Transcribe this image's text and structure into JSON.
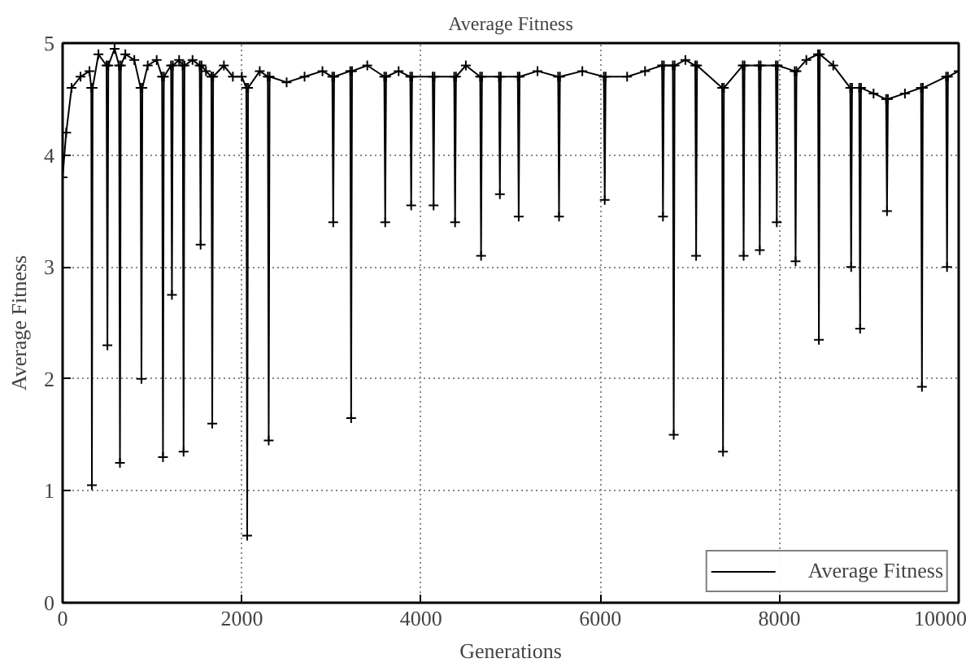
{
  "chart_data": {
    "type": "line",
    "title": "Average Fitness",
    "xlabel": "Generations",
    "ylabel": "Average Fitness",
    "xlim": [
      0,
      10000
    ],
    "ylim": [
      0,
      5
    ],
    "xticks": [
      0,
      2000,
      4000,
      6000,
      8000,
      10000
    ],
    "yticks": [
      0,
      1,
      2,
      3,
      4,
      5
    ],
    "grid": true,
    "legend": "bottom right",
    "marker": "cross",
    "line_style": "solid",
    "series": [
      {
        "name": "Average Fitness",
        "color": "#000000",
        "x": [
          0,
          40,
          100,
          200,
          300,
          320,
          327,
          335,
          400,
          490,
          500,
          510,
          580,
          630,
          640,
          650,
          700,
          800,
          870,
          880,
          890,
          950,
          1050,
          1110,
          1120,
          1130,
          1210,
          1220,
          1230,
          1300,
          1340,
          1350,
          1360,
          1450,
          1530,
          1540,
          1550,
          1600,
          1660,
          1670,
          1680,
          1800,
          1900,
          2000,
          2050,
          2060,
          2070,
          2200,
          2290,
          2300,
          2310,
          2500,
          2700,
          2900,
          3010,
          3020,
          3030,
          3210,
          3220,
          3230,
          3400,
          3590,
          3600,
          3610,
          3750,
          3880,
          3890,
          3900,
          4130,
          4140,
          4150,
          4370,
          4380,
          4390,
          4500,
          4660,
          4670,
          4680,
          4870,
          4880,
          4890,
          5080,
          5090,
          5100,
          5300,
          5530,
          5540,
          5550,
          5800,
          6040,
          6050,
          6060,
          6300,
          6500,
          6690,
          6700,
          6710,
          6810,
          6820,
          6830,
          6950,
          7060,
          7070,
          7080,
          7360,
          7370,
          7380,
          7590,
          7600,
          7610,
          7770,
          7780,
          7790,
          7960,
          7970,
          7980,
          8170,
          8180,
          8190,
          8300,
          8430,
          8440,
          8450,
          8600,
          8790,
          8800,
          8810,
          8890,
          8900,
          8910,
          9050,
          9190,
          9200,
          9210,
          9400,
          9580,
          9590,
          9600,
          9860,
          9870,
          9880,
          10000
        ],
        "values": [
          3.8,
          4.2,
          4.6,
          4.7,
          4.75,
          4.6,
          1.05,
          4.6,
          4.9,
          4.8,
          2.3,
          4.8,
          4.95,
          4.8,
          1.25,
          4.8,
          4.9,
          4.85,
          4.6,
          2.0,
          4.6,
          4.8,
          4.85,
          4.7,
          1.3,
          4.7,
          4.8,
          2.75,
          4.8,
          4.85,
          4.8,
          1.35,
          4.8,
          4.85,
          4.8,
          3.2,
          4.8,
          4.75,
          4.7,
          1.6,
          4.7,
          4.8,
          4.7,
          4.7,
          4.6,
          0.6,
          4.6,
          4.75,
          4.7,
          1.45,
          4.7,
          4.65,
          4.7,
          4.75,
          4.7,
          3.4,
          4.7,
          4.75,
          1.65,
          4.75,
          4.8,
          4.7,
          3.4,
          4.7,
          4.75,
          4.7,
          3.55,
          4.7,
          4.7,
          3.55,
          4.7,
          4.7,
          3.4,
          4.7,
          4.8,
          4.7,
          3.1,
          4.7,
          4.7,
          3.65,
          4.7,
          4.7,
          3.45,
          4.7,
          4.75,
          4.7,
          3.45,
          4.7,
          4.75,
          4.7,
          3.6,
          4.7,
          4.7,
          4.75,
          4.8,
          3.45,
          4.8,
          4.8,
          1.5,
          4.8,
          4.85,
          4.8,
          3.1,
          4.8,
          4.6,
          1.35,
          4.6,
          4.8,
          3.1,
          4.8,
          4.8,
          3.15,
          4.8,
          4.8,
          3.4,
          4.8,
          4.75,
          3.05,
          4.75,
          4.85,
          4.9,
          2.35,
          4.9,
          4.8,
          4.6,
          3.0,
          4.6,
          4.6,
          2.45,
          4.6,
          4.55,
          4.5,
          3.5,
          4.5,
          4.55,
          4.6,
          1.93,
          4.6,
          4.7,
          3.0,
          4.7,
          4.75
        ]
      }
    ]
  }
}
